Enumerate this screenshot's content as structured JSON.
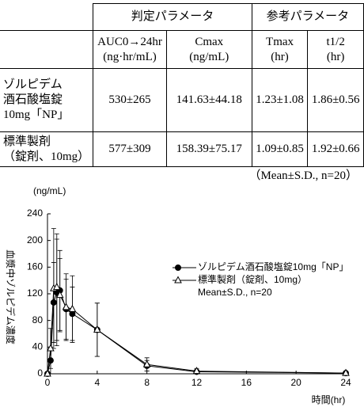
{
  "table": {
    "group_headers": [
      {
        "label": "判定パラメータ",
        "span": 2
      },
      {
        "label": "参考パラメータ",
        "span": 2
      }
    ],
    "columns": [
      {
        "name": "AUC0→24hr",
        "unit": "(ng·hr/mL)"
      },
      {
        "name": "Cmax",
        "unit": "(ng/mL)"
      },
      {
        "name": "Tmax",
        "unit": "(hr)"
      },
      {
        "name": "t1/2",
        "unit": "(hr)"
      }
    ],
    "rows": [
      {
        "label": [
          "ゾルピデム",
          "酒石酸塩錠",
          "10mg「NP」"
        ],
        "cells": [
          "530±265",
          "141.63±44.18",
          "1.23±1.08",
          "1.86±0.56"
        ]
      },
      {
        "label": [
          "標準製剤",
          "（錠剤、10mg）"
        ],
        "cells": [
          "577±309",
          "158.39±75.17",
          "1.09±0.85",
          "1.92±0.66"
        ]
      }
    ],
    "footnote": "（Mean±S.D., n=20）"
  },
  "chart_data": {
    "type": "line",
    "y_unit": "(ng/mL)",
    "ylabel": "血漿中ゾルピデム濃度",
    "xlabel": "時間(hr)",
    "note": "Mean±S.D., n=20",
    "x": [
      0,
      0.25,
      0.5,
      0.75,
      1,
      1.5,
      2,
      4,
      8,
      12,
      24
    ],
    "series": [
      {
        "name": "ゾルピデム酒石酸塩錠10mg「NP」",
        "color": "#000000",
        "marker": "circle",
        "values": [
          0,
          20,
          107,
          122,
          125,
          97,
          90,
          66,
          12,
          3,
          1
        ],
        "errors": [
          0,
          20,
          60,
          80,
          60,
          45,
          40,
          40,
          8,
          3,
          1
        ]
      },
      {
        "name": "標準製剤（錠剤、10mg）",
        "color": "#000000",
        "marker": "triangle",
        "values": [
          0,
          38,
          128,
          130,
          118,
          100,
          97,
          66,
          14,
          4,
          1
        ],
        "errors": [
          0,
          30,
          90,
          80,
          55,
          50,
          50,
          40,
          10,
          4,
          1
        ]
      }
    ],
    "xlim": [
      0,
      24
    ],
    "xticks": [
      0,
      4,
      8,
      12,
      16,
      20,
      24
    ],
    "ylim": [
      0,
      240
    ],
    "yticks": [
      0,
      40,
      80,
      120,
      160,
      200,
      240
    ]
  }
}
